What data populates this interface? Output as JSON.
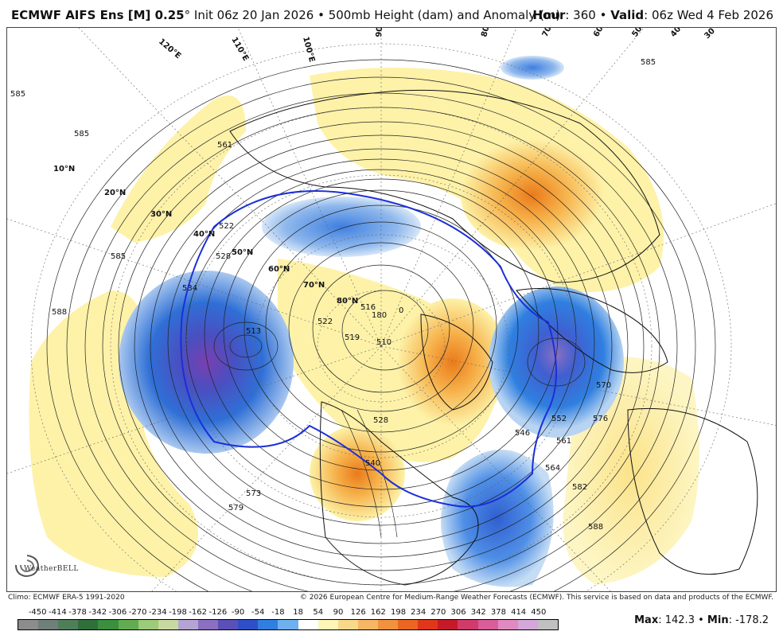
{
  "header": {
    "model": "ECMWF AIFS Ens [M] 0.25",
    "degree": "°",
    "init": "Init 06z 20 Jan 2026",
    "sep": "•",
    "product": "500mb Height (dam) and Anomaly (m)",
    "hour_label": "Hour",
    "hour_value": ": 360",
    "valid_label": "Valid",
    "valid_value": ": 06z Wed 4 Feb 2026"
  },
  "map": {
    "latitude_labels": [
      "10°N",
      "20°N",
      "30°N",
      "40°N",
      "50°N",
      "60°N",
      "70°N",
      "80°N"
    ],
    "longitude_labels": [
      "120°E",
      "110°E",
      "100°E",
      "90°E",
      "80°E",
      "70°E",
      "60°E",
      "50°E",
      "40°E",
      "30°E"
    ],
    "contour_labels": [
      "585",
      "585",
      "585",
      "585",
      "588",
      "588",
      "561",
      "528",
      "522",
      "534",
      "513",
      "516",
      "510",
      "519",
      "522",
      "180",
      "0",
      "528",
      "540",
      "546",
      "552",
      "561",
      "564",
      "570",
      "576",
      "582",
      "573",
      "579"
    ],
    "colors": {
      "negative_strong": "#7a3fb0",
      "negative": "#2f6fd6",
      "negative_light": "#a9c8ef",
      "positive_light": "#fdf2a8",
      "positive": "#f6b14a",
      "positive_strong": "#ea7a1a",
      "zero_line": "#1a2fd8"
    },
    "logo": "WeatherBELL"
  },
  "footer": {
    "climo": "Climo: ECMWF ERA-5 1991-2020",
    "copyright": "© 2026 European Centre for Medium-Range Weather Forecasts (ECMWF). This service is based on data and products of the ECMWF."
  },
  "legend": {
    "ticks": [
      "-450",
      "-414",
      "-378",
      "-342",
      "-306",
      "-270",
      "-234",
      "-198",
      "-162",
      "-126",
      "-90",
      "-54",
      "-18",
      "18",
      "54",
      "90",
      "126",
      "162",
      "198",
      "234",
      "270",
      "306",
      "342",
      "378",
      "414",
      "450"
    ],
    "colors": [
      "#8c8c8c",
      "#6f7f7a",
      "#4f7f5a",
      "#2f6f3a",
      "#3b8f3f",
      "#63ab52",
      "#9ccb7a",
      "#c7d9a0",
      "#b3a4d3",
      "#8b6fc1",
      "#5b4fb8",
      "#2f4fc8",
      "#2f7fe0",
      "#6fb0f0",
      "#ffffff",
      "#fdf6b8",
      "#f8d98a",
      "#f5b764",
      "#f0923e",
      "#ea6622",
      "#e0371b",
      "#c51a2a",
      "#d13b6a",
      "#d85d99",
      "#e189c1",
      "#d4a6d9",
      "#c0c0c0"
    ]
  },
  "stats": {
    "max_label": "Max",
    "max_value": ": 142.3",
    "sep": "•",
    "min_label": "Min",
    "min_value": ": -178.2"
  }
}
